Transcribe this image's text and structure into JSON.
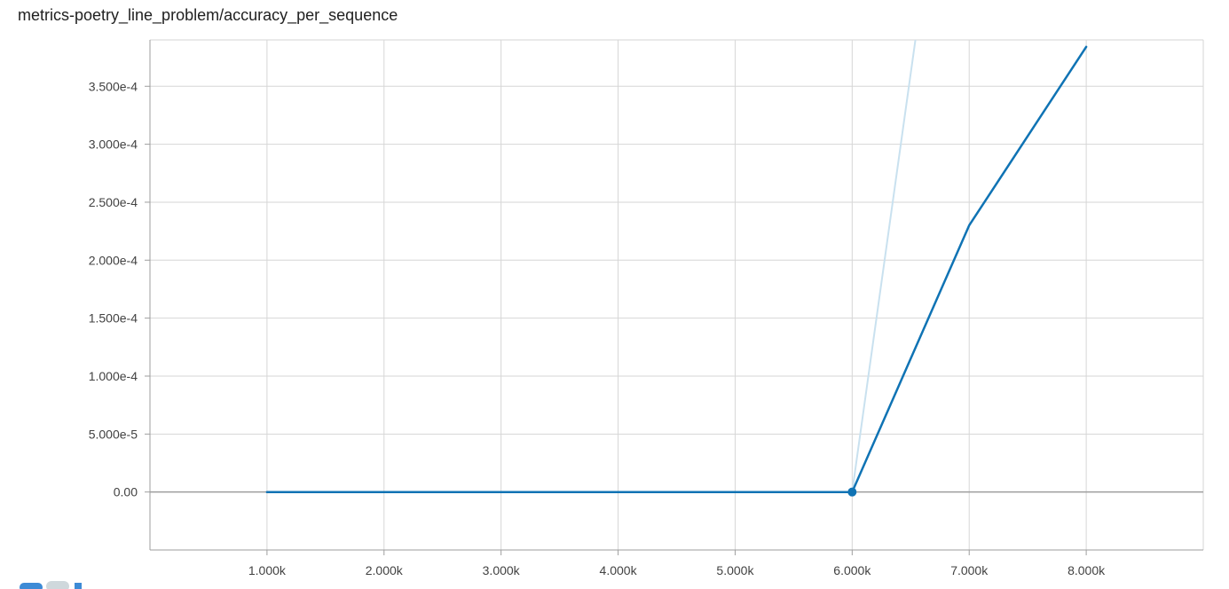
{
  "chart_data": {
    "type": "line",
    "title": "metrics-poetry_line_problem/accuracy_per_sequence",
    "xlabel": "",
    "ylabel": "",
    "xlim": [
      0,
      9000
    ],
    "ylim": [
      -5e-05,
      0.00039
    ],
    "x_ticks": [
      {
        "value": 1000,
        "label": "1.000k"
      },
      {
        "value": 2000,
        "label": "2.000k"
      },
      {
        "value": 3000,
        "label": "3.000k"
      },
      {
        "value": 4000,
        "label": "4.000k"
      },
      {
        "value": 5000,
        "label": "5.000k"
      },
      {
        "value": 6000,
        "label": "6.000k"
      },
      {
        "value": 7000,
        "label": "7.000k"
      },
      {
        "value": 8000,
        "label": "8.000k"
      }
    ],
    "y_ticks": [
      {
        "value": 0,
        "label": "0.00"
      },
      {
        "value": 5e-05,
        "label": "5.000e-5"
      },
      {
        "value": 0.0001,
        "label": "1.000e-4"
      },
      {
        "value": 0.00015,
        "label": "1.500e-4"
      },
      {
        "value": 0.0002,
        "label": "2.000e-4"
      },
      {
        "value": 0.00025,
        "label": "2.500e-4"
      },
      {
        "value": 0.0003,
        "label": "3.000e-4"
      },
      {
        "value": 0.00035,
        "label": "3.500e-4"
      }
    ],
    "grid": true,
    "series": [
      {
        "role": "raw",
        "color": "#c9e1ef",
        "points": [
          [
            1000,
            0
          ],
          [
            6000,
            0
          ],
          [
            6540,
            0.00039
          ]
        ]
      },
      {
        "role": "smoothed",
        "color": "#0f73b4",
        "points": [
          [
            1000,
            0
          ],
          [
            2000,
            0
          ],
          [
            3000,
            0
          ],
          [
            4000,
            0
          ],
          [
            5000,
            0
          ],
          [
            6000,
            0
          ],
          [
            7000,
            0.00023
          ],
          [
            8000,
            0.000384
          ]
        ]
      }
    ],
    "highlight_point": {
      "x": 6000,
      "y": 0,
      "color": "#0f73b4"
    }
  },
  "colors": {
    "grid": "#d6d6d6",
    "zero_line": "#9e9e9e",
    "axis": "#9e9e9e"
  }
}
